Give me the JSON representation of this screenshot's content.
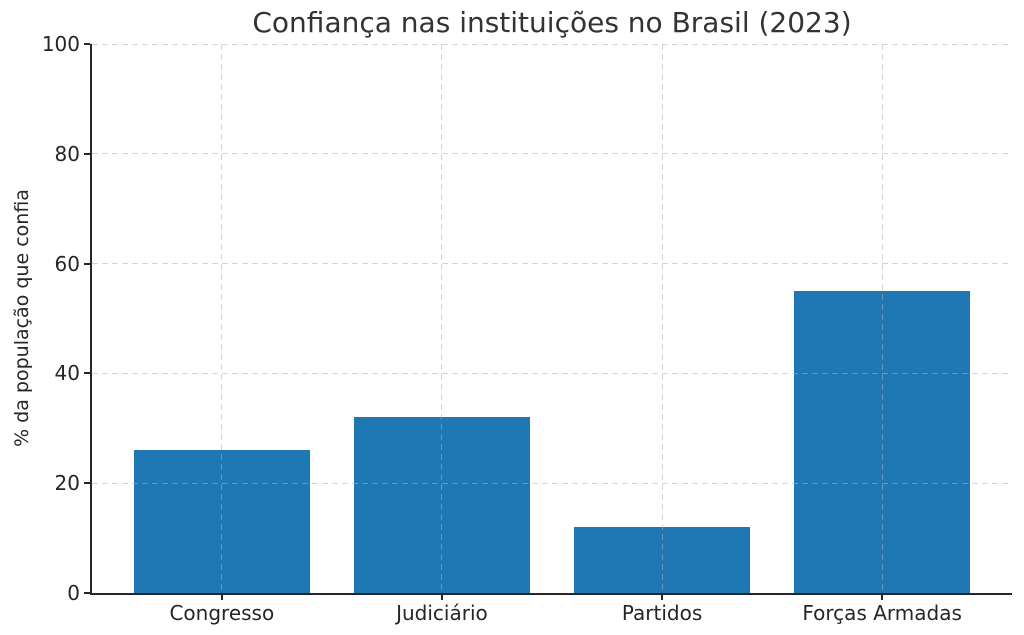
{
  "chart_data": {
    "type": "bar",
    "title": "Confiança nas instituições no Brasil (2023)",
    "xlabel": "",
    "ylabel": "% da população que confia",
    "categories": [
      "Congresso",
      "Judiciário",
      "Partidos",
      "Forças Armadas"
    ],
    "values": [
      26,
      32,
      12,
      55
    ],
    "ylim": [
      0,
      100
    ],
    "yticks": [
      0,
      20,
      40,
      60,
      80,
      100
    ],
    "bar_color": "#1f77b4",
    "grid": "dashed, light gray, horizontal and vertical, drawn above bars",
    "legend": null,
    "spines": "left and bottom only"
  }
}
